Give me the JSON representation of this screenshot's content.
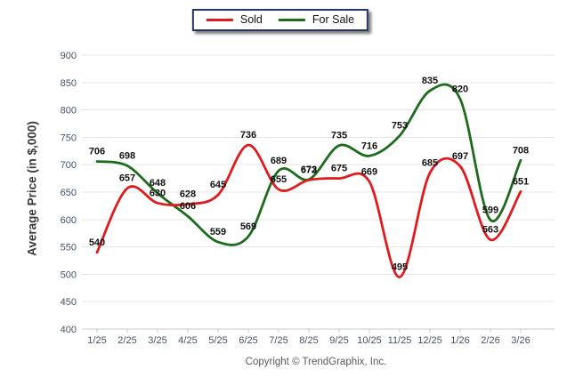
{
  "legend": {
    "items": [
      {
        "label": "Sold",
        "color": "#E01B1D"
      },
      {
        "label": "For Sale",
        "color": "#1D6B1D"
      }
    ]
  },
  "footer": {
    "copyright": "Copyright © TrendGraphix, Inc."
  },
  "chart_data": {
    "type": "line",
    "title": "",
    "categories": [
      "1/25",
      "2/25",
      "3/25",
      "4/25",
      "5/25",
      "6/25",
      "7/25",
      "8/25",
      "9/25",
      "10/25",
      "11/25",
      "12/25",
      "1/26",
      "2/26",
      "3/26"
    ],
    "series": [
      {
        "name": "Sold",
        "color": "#E01B1D",
        "values": [
          540,
          657,
          630,
          628,
          645,
          736,
          655,
          672,
          675,
          669,
          495,
          685,
          697,
          563,
          651
        ]
      },
      {
        "name": "For Sale",
        "color": "#1D6B1D",
        "values": [
          706,
          698,
          648,
          606,
          559,
          569,
          689,
          673,
          735,
          716,
          753,
          835,
          820,
          599,
          708
        ]
      }
    ],
    "xlabel": "",
    "ylabel": "Average Price (in $,000)",
    "ylim": [
      400,
      900
    ],
    "ytick_step": 50,
    "grid": true,
    "legend_position": "top-center",
    "data_labels": true,
    "smoothed": true,
    "axis_text_color": "#44546A",
    "grid_color": "#E4E4E4",
    "axis_line_color": "#C9C9C9",
    "data_label_color": "#111111"
  }
}
